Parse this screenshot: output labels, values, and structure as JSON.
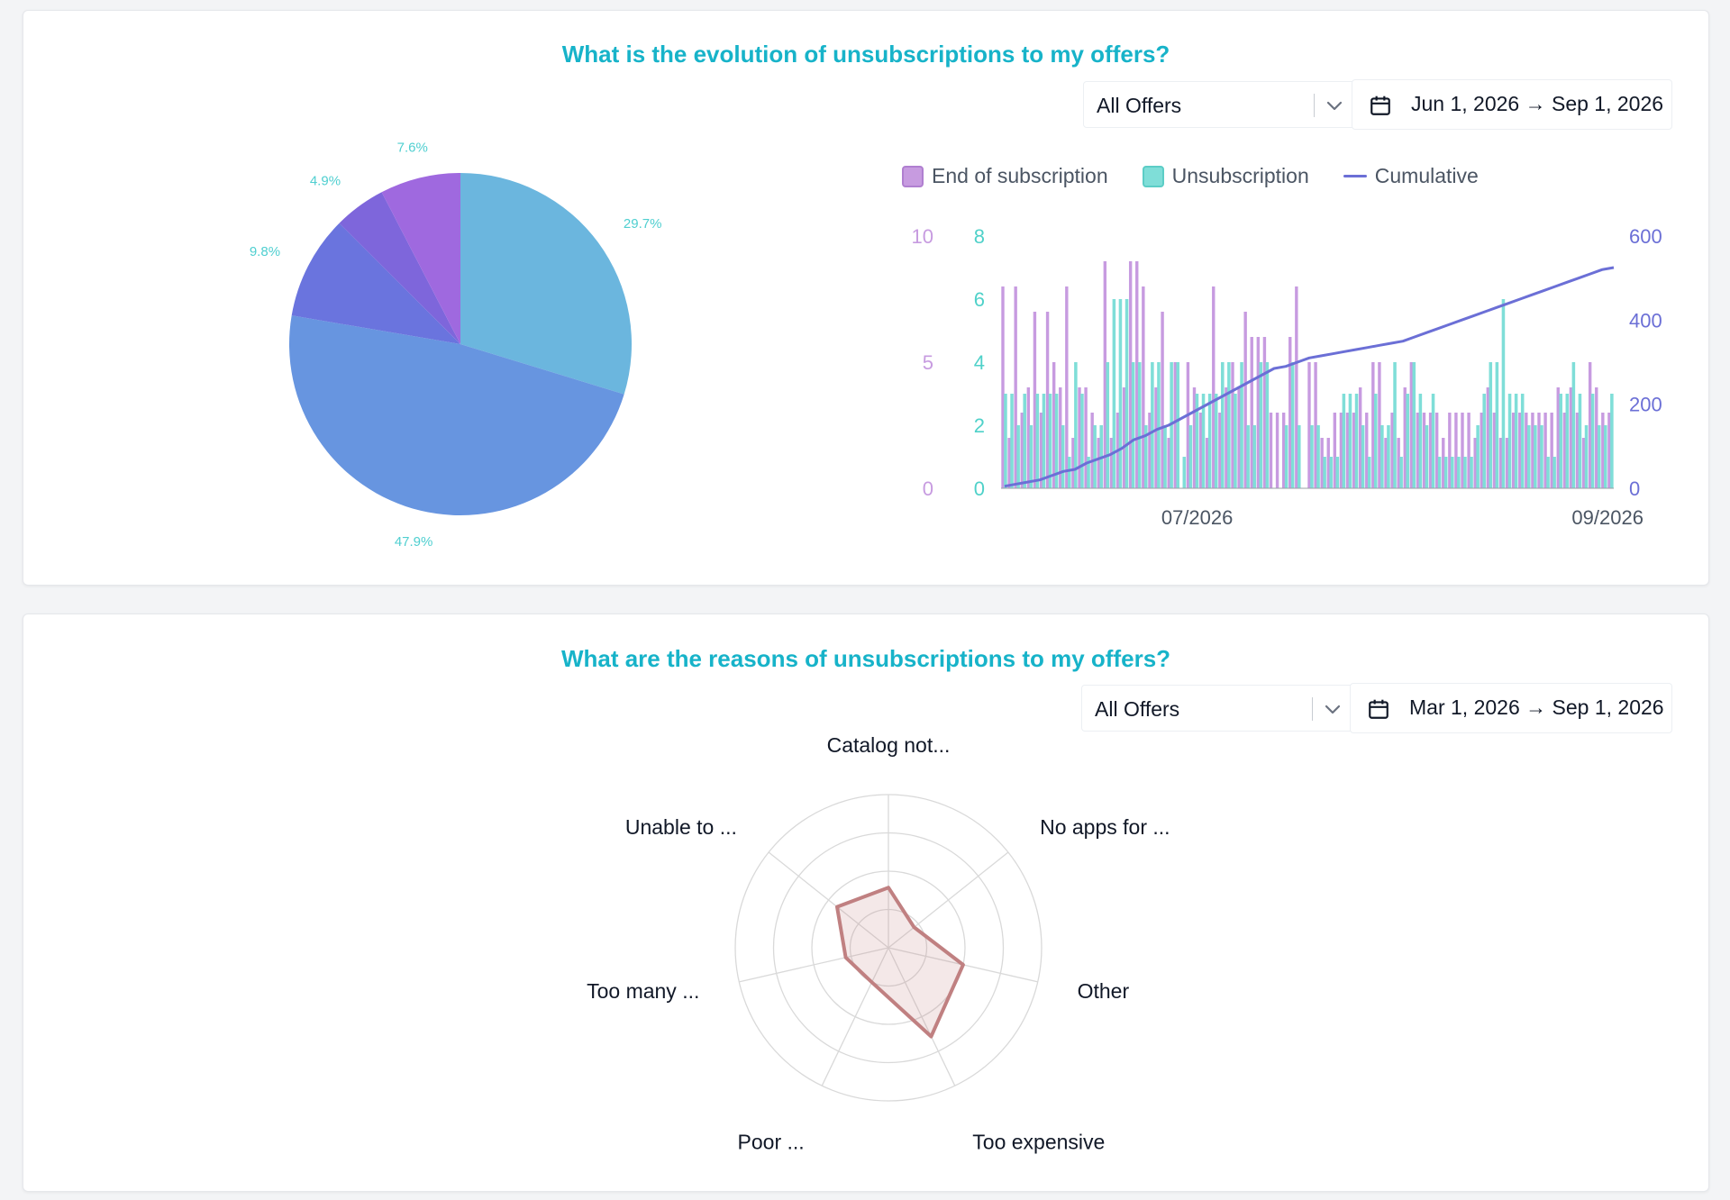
{
  "colors": {
    "title": "#17b3c9",
    "end_of_subscription": "#c79be0",
    "unsubscription": "#7fded8",
    "cumulative": "#6b6fd6",
    "radar": "#c08081"
  },
  "card1": {
    "title": "What is the evolution of unsubscriptions to my offers?",
    "offer_select": {
      "value": "All Offers",
      "icon": "chevron-down-icon"
    },
    "date_range": {
      "value": "Jun 1, 2026 → Sep 1, 2026",
      "icon": "calendar-icon"
    }
  },
  "card2": {
    "title": "What are the reasons of unsubscriptions to my offers?",
    "offer_select": {
      "value": "All Offers",
      "icon": "chevron-down-icon"
    },
    "date_range": {
      "value": "Mar 1, 2026 → Sep 1, 2026",
      "icon": "calendar-icon"
    }
  },
  "chart_data": [
    {
      "type": "pie",
      "slices": [
        {
          "value": 29.7,
          "label": "29.7%",
          "color": "#6bb6de"
        },
        {
          "value": 47.9,
          "label": "47.9%",
          "color": "#6795e0"
        },
        {
          "value": 9.8,
          "label": "9.8%",
          "color": "#6a74de"
        },
        {
          "value": 4.9,
          "label": "4.9%",
          "color": "#7e66db"
        },
        {
          "value": 7.6,
          "label": "7.6%",
          "color": "#9f69df"
        }
      ],
      "start_angle": "12 o'clock",
      "direction": "clockwise"
    },
    {
      "type": "bar",
      "legend": [
        "End of subscription",
        "Unsubscription",
        "Cumulative"
      ],
      "legend_position": "top",
      "x": {
        "start": "2026-06-01",
        "end": "2026-09-01",
        "tick_labels": [
          "07/2026",
          "09/2026"
        ]
      },
      "y_axes": [
        {
          "series": "End of subscription",
          "range": [
            0,
            10
          ],
          "ticks": [
            "0",
            "5",
            "10"
          ],
          "side": "left-outer"
        },
        {
          "series": "Unsubscription",
          "range": [
            0,
            8
          ],
          "ticks": [
            "0",
            "2",
            "4",
            "6",
            "8"
          ],
          "side": "left"
        },
        {
          "series": "Cumulative",
          "range": [
            0,
            600
          ],
          "ticks": [
            "0",
            "200",
            "400",
            "600"
          ],
          "side": "right"
        }
      ],
      "series": [
        {
          "name": "End of subscription",
          "type": "bar",
          "values": [
            8,
            2,
            8,
            3,
            4,
            7,
            3,
            7,
            5,
            4,
            8,
            2,
            4,
            4,
            3,
            2,
            9,
            2,
            3,
            4,
            9,
            9,
            8,
            3,
            4,
            7,
            2,
            5,
            0,
            5,
            4,
            3,
            2,
            8,
            3,
            4,
            5,
            4,
            7,
            6,
            6,
            6,
            3,
            3,
            3,
            6,
            8,
            0,
            5,
            5,
            2,
            2,
            3,
            3,
            3,
            3,
            4,
            3,
            5,
            5,
            2,
            3,
            2,
            4,
            5,
            3,
            3,
            3,
            3,
            2,
            3,
            3,
            3,
            3,
            2,
            3,
            4,
            3,
            2,
            2,
            3,
            3,
            3,
            3,
            3,
            3,
            3,
            4,
            3,
            4,
            3,
            2,
            5,
            4,
            3,
            3
          ]
        },
        {
          "name": "Unsubscription",
          "type": "bar",
          "values": [
            3,
            3,
            2,
            3,
            2,
            3,
            3,
            3,
            3,
            2,
            1,
            4,
            3,
            1,
            2,
            2,
            4,
            6,
            6,
            6,
            4,
            4,
            2,
            4,
            4,
            2,
            4,
            4,
            1,
            2,
            3,
            3,
            3,
            3,
            4,
            4,
            3,
            4,
            2,
            2,
            4,
            4,
            0,
            0,
            2,
            4,
            2,
            0,
            2,
            2,
            1,
            1,
            1,
            3,
            3,
            3,
            2,
            1,
            3,
            2,
            2,
            4,
            1,
            3,
            4,
            3,
            2,
            3,
            1,
            1,
            1,
            1,
            1,
            1,
            2,
            3,
            4,
            4,
            6,
            3,
            3,
            3,
            2,
            2,
            2,
            1,
            1,
            3,
            3,
            4,
            3,
            2,
            3,
            2,
            2,
            3
          ]
        },
        {
          "name": "Cumulative",
          "type": "line",
          "values": [
            5,
            10,
            15,
            20,
            30,
            40,
            45,
            60,
            70,
            80,
            95,
            115,
            125,
            140,
            150,
            165,
            180,
            195,
            210,
            225,
            240,
            255,
            270,
            285,
            290,
            300,
            310,
            315,
            320,
            325,
            330,
            335,
            340,
            345,
            350,
            360,
            370,
            380,
            390,
            400,
            410,
            420,
            430,
            440,
            450,
            460,
            470,
            480,
            490,
            500,
            510,
            520,
            525
          ]
        }
      ]
    },
    {
      "type": "radar",
      "axes": [
        "Catalog not...",
        "No apps for ...",
        "Other",
        "Too expensive",
        "Poor ...",
        "Too many ...",
        "Unable to ..."
      ],
      "values": [
        55,
        30,
        70,
        90,
        35,
        40,
        60
      ],
      "range": [
        0,
        140
      ],
      "rings": 4,
      "color": "#c08081"
    }
  ]
}
